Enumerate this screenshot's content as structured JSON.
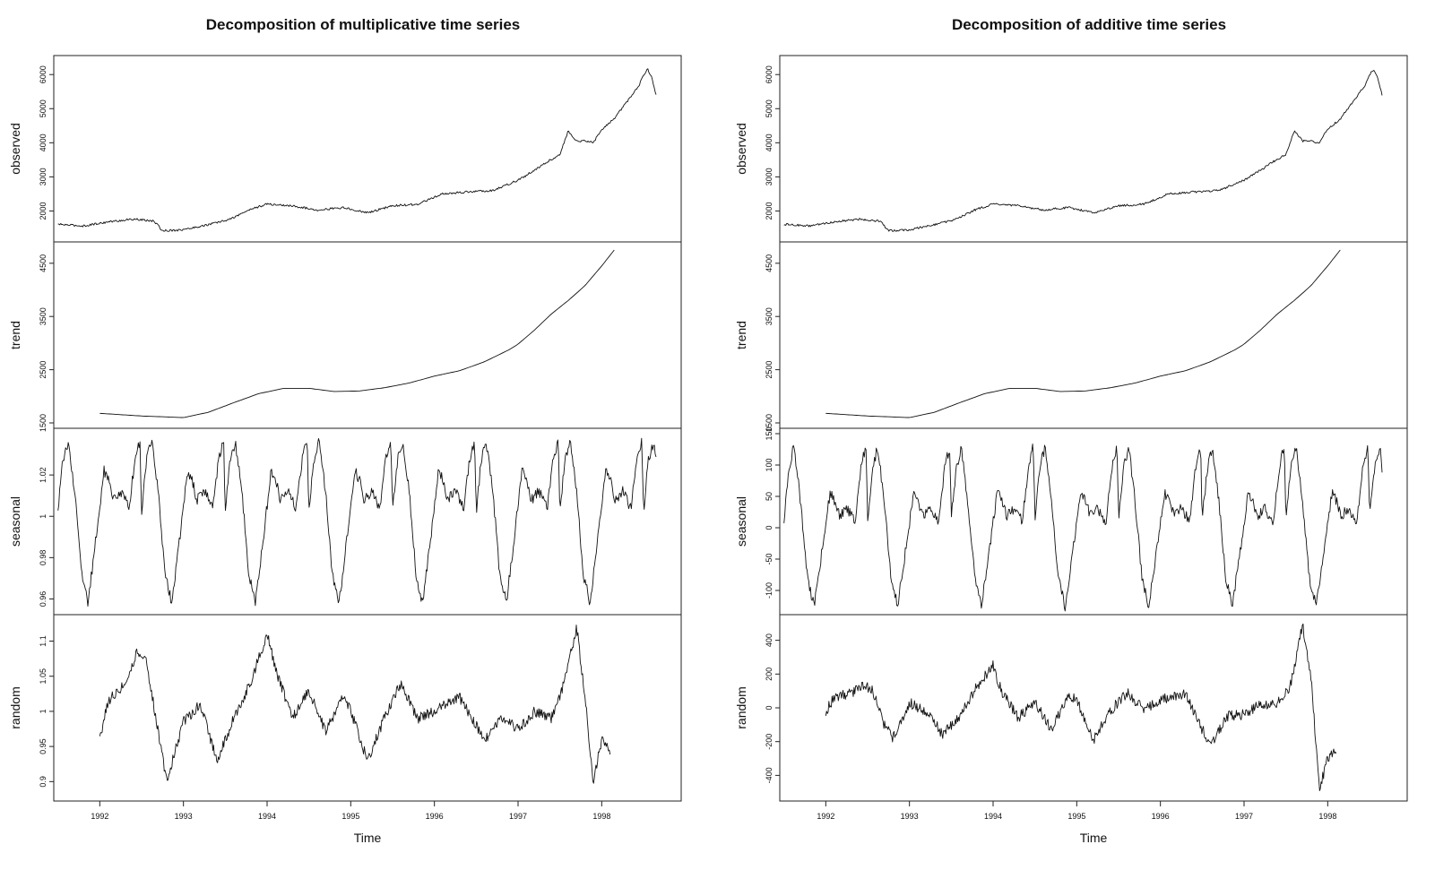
{
  "chart_data": [
    {
      "type": "line",
      "title": "Decomposition of multiplicative time series",
      "xlabel": "Time",
      "x_ticks": [
        1992,
        1993,
        1994,
        1995,
        1996,
        1997,
        1998
      ],
      "xlim": [
        1991.45,
        1998.95
      ],
      "panels": [
        {
          "name": "observed",
          "ylim": [
            1250,
            6400
          ],
          "ticks": [
            2000,
            3000,
            4000,
            5000,
            6000
          ],
          "x": [
            1991.5,
            1991.8,
            1992.1,
            1992.4,
            1992.65,
            1992.75,
            1993.0,
            1993.3,
            1993.55,
            1993.8,
            1994.0,
            1994.3,
            1994.6,
            1994.9,
            1995.2,
            1995.5,
            1995.8,
            1996.1,
            1996.4,
            1996.7,
            1997.0,
            1997.2,
            1997.35,
            1997.5,
            1997.6,
            1997.7,
            1997.8,
            1997.9,
            1998.0,
            1998.15,
            1998.3,
            1998.45,
            1998.5,
            1998.55,
            1998.6,
            1998.65
          ],
          "y": [
            1610,
            1560,
            1680,
            1760,
            1700,
            1420,
            1450,
            1600,
            1750,
            2050,
            2200,
            2150,
            2030,
            2100,
            1950,
            2150,
            2200,
            2500,
            2560,
            2600,
            2900,
            3200,
            3450,
            3650,
            4350,
            4050,
            4050,
            4000,
            4400,
            4700,
            5200,
            5700,
            6000,
            6150,
            5900,
            5400
          ]
        },
        {
          "name": "trend",
          "ylim": [
            1500,
            4800
          ],
          "ticks": [
            1500,
            2500,
            3500,
            4500
          ],
          "x": [
            1992.0,
            1992.5,
            1993.0,
            1993.3,
            1993.6,
            1993.9,
            1994.2,
            1994.5,
            1994.8,
            1995.1,
            1995.4,
            1995.7,
            1996.0,
            1996.3,
            1996.6,
            1996.9,
            1997.0,
            1997.2,
            1997.4,
            1997.6,
            1997.8,
            1998.0,
            1998.15
          ],
          "y": [
            1680,
            1630,
            1600,
            1700,
            1880,
            2050,
            2150,
            2150,
            2090,
            2100,
            2160,
            2250,
            2380,
            2480,
            2650,
            2880,
            2980,
            3250,
            3550,
            3800,
            4080,
            4450,
            4750
          ]
        },
        {
          "name": "seasonal",
          "ylim": [
            0.955,
            1.04
          ],
          "ticks": [
            0.96,
            0.98,
            1.0,
            1.02
          ],
          "cycle_x": [
            0.0,
            0.06,
            0.12,
            0.2,
            0.28,
            0.36,
            0.45,
            0.55,
            0.6,
            0.66,
            0.75,
            0.85,
            0.92,
            0.98,
            1.0
          ],
          "cycle_y": [
            1.002,
            1.028,
            1.036,
            1.012,
            0.972,
            0.958,
            0.988,
            1.022,
            1.018,
            1.008,
            1.012,
            1.004,
            1.028,
            1.036,
            1.002
          ],
          "x_start": 1991.5,
          "x_end": 1998.65
        },
        {
          "name": "random",
          "ylim": [
            0.88,
            1.13
          ],
          "ticks": [
            0.9,
            0.95,
            1.0,
            1.05,
            1.1
          ],
          "x": [
            1992.0,
            1992.1,
            1992.3,
            1992.45,
            1992.55,
            1992.7,
            1992.8,
            1993.0,
            1993.2,
            1993.4,
            1993.6,
            1993.8,
            1994.0,
            1994.1,
            1994.3,
            1994.5,
            1994.7,
            1994.9,
            1995.0,
            1995.2,
            1995.4,
            1995.6,
            1995.8,
            1996.0,
            1996.3,
            1996.6,
            1996.8,
            1997.0,
            1997.2,
            1997.4,
            1997.55,
            1997.7,
            1997.8,
            1997.9,
            1998.0,
            1998.1
          ],
          "y": [
            0.962,
            1.015,
            1.04,
            1.085,
            1.075,
            0.97,
            0.9,
            0.985,
            1.01,
            0.93,
            0.99,
            1.04,
            1.11,
            1.06,
            0.99,
            1.03,
            0.97,
            1.02,
            1.0,
            0.93,
            0.99,
            1.04,
            0.99,
            1.0,
            1.02,
            0.96,
            0.99,
            0.975,
            1.0,
            0.99,
            1.04,
            1.12,
            1.02,
            0.9,
            0.96,
            0.94
          ]
        }
      ]
    },
    {
      "type": "line",
      "title": "Decomposition of additive time series",
      "xlabel": "Time",
      "x_ticks": [
        1992,
        1993,
        1994,
        1995,
        1996,
        1997,
        1998
      ],
      "xlim": [
        1991.45,
        1998.95
      ],
      "panels": [
        {
          "name": "observed",
          "ylim": [
            1250,
            6400
          ],
          "ticks": [
            2000,
            3000,
            4000,
            5000,
            6000
          ],
          "x": [
            1991.5,
            1991.8,
            1992.1,
            1992.4,
            1992.65,
            1992.75,
            1993.0,
            1993.3,
            1993.55,
            1993.8,
            1994.0,
            1994.3,
            1994.6,
            1994.9,
            1995.2,
            1995.5,
            1995.8,
            1996.1,
            1996.4,
            1996.7,
            1997.0,
            1997.2,
            1997.35,
            1997.5,
            1997.6,
            1997.7,
            1997.8,
            1997.9,
            1998.0,
            1998.15,
            1998.3,
            1998.45,
            1998.5,
            1998.55,
            1998.6,
            1998.65
          ],
          "y": [
            1610,
            1560,
            1680,
            1760,
            1700,
            1420,
            1450,
            1600,
            1750,
            2050,
            2200,
            2150,
            2030,
            2100,
            1950,
            2150,
            2200,
            2500,
            2560,
            2600,
            2900,
            3200,
            3450,
            3650,
            4350,
            4050,
            4050,
            4000,
            4400,
            4700,
            5200,
            5700,
            6000,
            6150,
            5900,
            5400
          ]
        },
        {
          "name": "trend",
          "ylim": [
            1500,
            4800
          ],
          "ticks": [
            1500,
            2500,
            3500,
            4500
          ],
          "x": [
            1992.0,
            1992.5,
            1993.0,
            1993.3,
            1993.6,
            1993.9,
            1994.2,
            1994.5,
            1994.8,
            1995.1,
            1995.4,
            1995.7,
            1996.0,
            1996.3,
            1996.6,
            1996.9,
            1997.0,
            1997.2,
            1997.4,
            1997.6,
            1997.8,
            1998.0,
            1998.15
          ],
          "y": [
            1680,
            1630,
            1600,
            1700,
            1880,
            2050,
            2150,
            2150,
            2090,
            2100,
            2160,
            2250,
            2380,
            2480,
            2650,
            2880,
            2980,
            3250,
            3550,
            3800,
            4080,
            4450,
            4750
          ]
        },
        {
          "name": "seasonal",
          "ylim": [
            -130,
            150
          ],
          "ticks": [
            -100,
            -50,
            0,
            50,
            100,
            150
          ],
          "cycle_x": [
            0.0,
            0.06,
            0.12,
            0.2,
            0.28,
            0.36,
            0.45,
            0.55,
            0.6,
            0.66,
            0.75,
            0.85,
            0.92,
            0.98,
            1.0
          ],
          "cycle_y": [
            15,
            95,
            130,
            40,
            -80,
            -125,
            -40,
            55,
            45,
            20,
            30,
            10,
            95,
            130,
            15
          ],
          "x_start": 1991.5,
          "x_end": 1998.65
        },
        {
          "name": "random",
          "ylim": [
            -520,
            520
          ],
          "ticks": [
            -400,
            -200,
            0,
            200,
            400
          ],
          "x": [
            1992.0,
            1992.1,
            1992.3,
            1992.45,
            1992.55,
            1992.7,
            1992.8,
            1993.0,
            1993.2,
            1993.4,
            1993.6,
            1993.8,
            1994.0,
            1994.1,
            1994.3,
            1994.5,
            1994.7,
            1994.9,
            1995.0,
            1995.2,
            1995.4,
            1995.6,
            1995.8,
            1996.0,
            1996.3,
            1996.6,
            1996.8,
            1997.0,
            1997.2,
            1997.4,
            1997.55,
            1997.7,
            1997.8,
            1997.9,
            1998.0,
            1998.1
          ],
          "y": [
            -20,
            60,
            90,
            130,
            110,
            -100,
            -180,
            30,
            -20,
            -160,
            -50,
            120,
            250,
            100,
            -60,
            40,
            -130,
            80,
            50,
            -190,
            -20,
            90,
            -10,
            50,
            80,
            -230,
            -50,
            -40,
            20,
            30,
            120,
            490,
            180,
            -480,
            -300,
            -240
          ]
        }
      ]
    }
  ]
}
